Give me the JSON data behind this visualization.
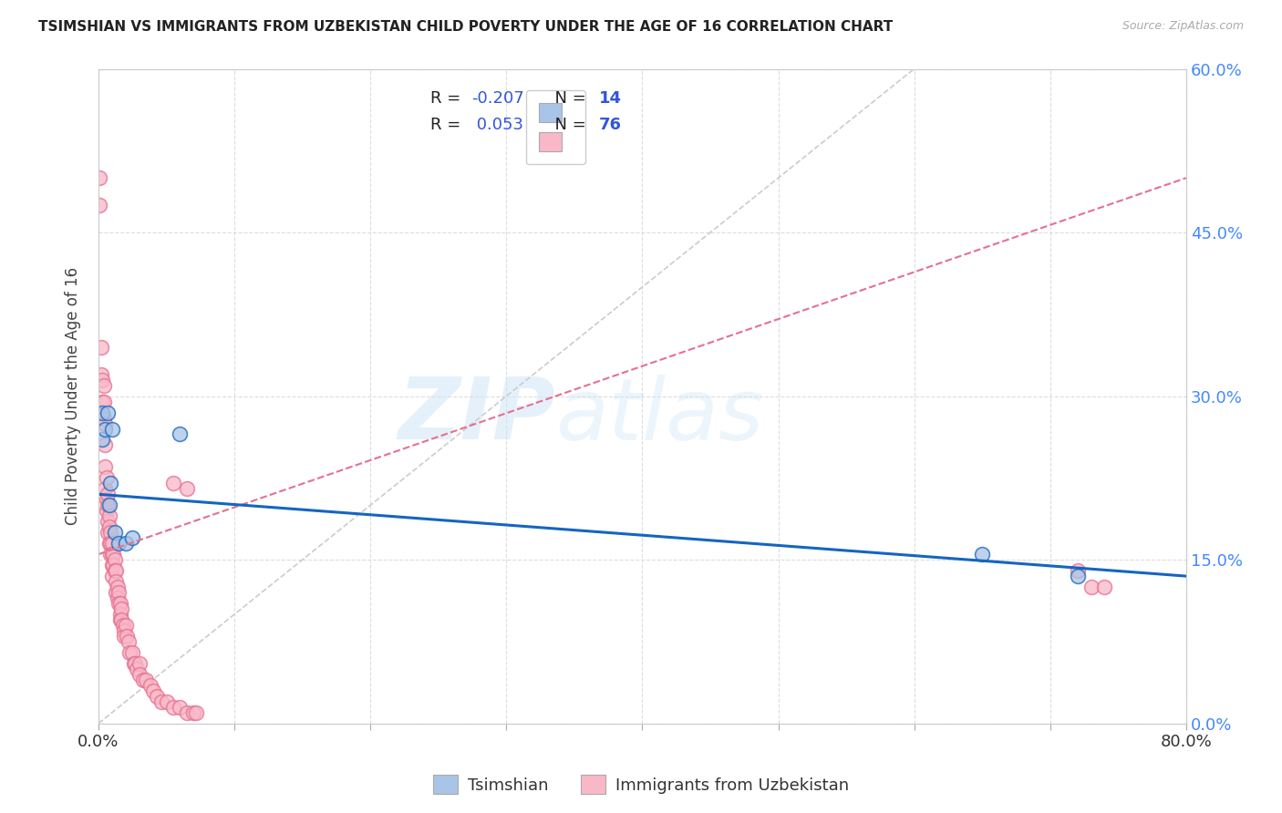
{
  "title": "TSIMSHIAN VS IMMIGRANTS FROM UZBEKISTAN CHILD POVERTY UNDER THE AGE OF 16 CORRELATION CHART",
  "source": "Source: ZipAtlas.com",
  "ylabel": "Child Poverty Under the Age of 16",
  "xlim": [
    0.0,
    0.8
  ],
  "ylim": [
    0.0,
    0.6
  ],
  "yticks": [
    0.0,
    0.15,
    0.3,
    0.45,
    0.6
  ],
  "ytick_labels": [
    "0.0%",
    "15.0%",
    "30.0%",
    "45.0%",
    "60.0%"
  ],
  "xtick_positions": [
    0.0,
    0.8
  ],
  "xtick_labels": [
    "0.0%",
    "80.0%"
  ],
  "color_tsimshian_fill": "#a8c4e6",
  "color_uzbekistan_fill": "#f9b8c8",
  "color_line_tsimshian": "#1565c0",
  "color_line_uzbekistan": "#e57090",
  "color_diag": "#cccccc",
  "background_color": "#ffffff",
  "grid_color": "#dddddd",
  "tsimshian_x": [
    0.003,
    0.003,
    0.005,
    0.007,
    0.008,
    0.009,
    0.01,
    0.012,
    0.015,
    0.02,
    0.025,
    0.06,
    0.65,
    0.72
  ],
  "tsimshian_y": [
    0.285,
    0.26,
    0.27,
    0.285,
    0.2,
    0.22,
    0.27,
    0.175,
    0.165,
    0.165,
    0.17,
    0.265,
    0.155,
    0.135
  ],
  "uzbekistan_x": [
    0.001,
    0.001,
    0.002,
    0.002,
    0.003,
    0.003,
    0.004,
    0.004,
    0.004,
    0.005,
    0.005,
    0.005,
    0.005,
    0.006,
    0.006,
    0.006,
    0.007,
    0.007,
    0.007,
    0.007,
    0.008,
    0.008,
    0.008,
    0.009,
    0.009,
    0.009,
    0.01,
    0.01,
    0.01,
    0.01,
    0.011,
    0.011,
    0.012,
    0.012,
    0.013,
    0.013,
    0.013,
    0.014,
    0.014,
    0.015,
    0.015,
    0.016,
    0.016,
    0.016,
    0.017,
    0.017,
    0.018,
    0.019,
    0.019,
    0.02,
    0.021,
    0.022,
    0.023,
    0.025,
    0.026,
    0.027,
    0.028,
    0.03,
    0.03,
    0.033,
    0.035,
    0.038,
    0.04,
    0.043,
    0.046,
    0.05,
    0.055,
    0.06,
    0.065,
    0.07,
    0.072,
    0.065,
    0.055,
    0.72,
    0.73,
    0.74
  ],
  "uzbekistan_y": [
    0.5,
    0.475,
    0.345,
    0.32,
    0.315,
    0.295,
    0.31,
    0.295,
    0.28,
    0.275,
    0.255,
    0.235,
    0.215,
    0.225,
    0.205,
    0.195,
    0.21,
    0.2,
    0.185,
    0.175,
    0.19,
    0.18,
    0.165,
    0.175,
    0.165,
    0.155,
    0.165,
    0.155,
    0.145,
    0.135,
    0.155,
    0.145,
    0.15,
    0.14,
    0.14,
    0.13,
    0.12,
    0.125,
    0.115,
    0.12,
    0.11,
    0.11,
    0.1,
    0.095,
    0.105,
    0.095,
    0.09,
    0.085,
    0.08,
    0.09,
    0.08,
    0.075,
    0.065,
    0.065,
    0.055,
    0.055,
    0.05,
    0.055,
    0.045,
    0.04,
    0.04,
    0.035,
    0.03,
    0.025,
    0.02,
    0.02,
    0.015,
    0.015,
    0.01,
    0.01,
    0.01,
    0.215,
    0.22,
    0.14,
    0.125,
    0.125
  ],
  "ts_line_x0": 0.0,
  "ts_line_x1": 0.8,
  "ts_line_y0": 0.21,
  "ts_line_y1": 0.135,
  "uz_line_x0": 0.0,
  "uz_line_x1": 0.8,
  "uz_line_y0": 0.155,
  "uz_line_y1": 0.5
}
